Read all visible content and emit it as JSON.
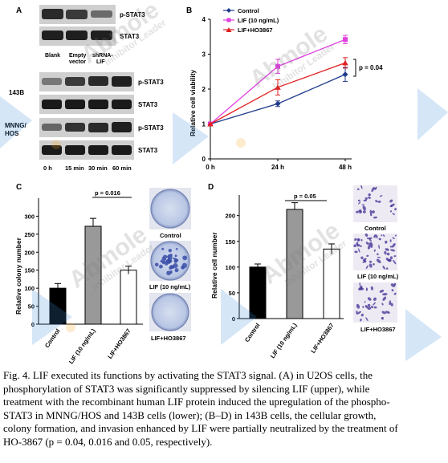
{
  "panel_a": {
    "label": "A",
    "top_blot": {
      "lanes": [
        "Blank",
        "Empty\nvector",
        "shRNA-\nLIF"
      ],
      "bands": [
        "p-STAT3",
        "STAT3"
      ]
    },
    "bottom_blot": {
      "cell_lines": [
        "143B",
        "MNNG/\nHOS"
      ],
      "bands": [
        "p-STAT3",
        "STAT3",
        "p-STAT3",
        "STAT3"
      ],
      "time_points": [
        "0 h",
        "15 min",
        "30 min",
        "60 min"
      ]
    }
  },
  "panel_b": {
    "label": "B",
    "ylabel": "Relative cell viability",
    "legend": [
      "Control",
      "LIF (10 ng/mL)",
      "LIF+HO3867"
    ],
    "pvalue": "p = 0.04"
  },
  "panel_c": {
    "label": "C",
    "ylabel": "Relative colony number",
    "pvalue": "p = 0.016",
    "photo_labels": [
      "Control",
      "LIF (10 ng/mL)",
      "LIF+HO3867"
    ]
  },
  "panel_d": {
    "label": "D",
    "ylabel": "Relative cell number",
    "pvalue": "p = 0.05",
    "photo_labels": [
      "Control",
      "LIF (10 ng/mL)",
      "LIF+HO3867"
    ]
  },
  "watermark": {
    "text": "Abmole",
    "subtext": "Inhibitor Leader"
  },
  "chart_data": [
    {
      "type": "line",
      "x": [
        "0 h",
        "24 h",
        "48 h"
      ],
      "xticks": [
        "0 h",
        "24 h",
        "48 h"
      ],
      "ylim": [
        0,
        4
      ],
      "yticks": [
        0,
        1,
        2,
        3,
        4
      ],
      "ylabel": "Relative cell viability",
      "series": [
        {
          "name": "Control",
          "values": [
            1.0,
            1.58,
            2.42
          ],
          "err": [
            0.03,
            0.08,
            0.2
          ],
          "color": "#1f3a8a",
          "marker": "diamond"
        },
        {
          "name": "LIF (10 ng/mL)",
          "values": [
            1.0,
            2.65,
            3.42
          ],
          "err": [
            0.03,
            0.2,
            0.12
          ],
          "color": "#e040e0",
          "marker": "square"
        },
        {
          "name": "LIF+HO3867",
          "values": [
            1.0,
            2.05,
            2.75
          ],
          "err": [
            0.03,
            0.22,
            0.15
          ],
          "color": "#e02020",
          "marker": "triangle"
        }
      ]
    },
    {
      "type": "bar",
      "categories": [
        "Control",
        "LIF (10 ng/mL)",
        "LIF+HO3867"
      ],
      "values": [
        100,
        272,
        150
      ],
      "err": [
        13,
        22,
        11
      ],
      "colors": [
        "#000000",
        "#999999",
        "#ffffff"
      ],
      "ylim": [
        0,
        350
      ],
      "yticks": [
        0,
        50,
        100,
        150,
        200,
        250,
        300
      ],
      "ylabel": "Relative colony number"
    },
    {
      "type": "bar",
      "categories": [
        "Control",
        "LIF (10 ng/mL)",
        "LIF+HO3867"
      ],
      "values": [
        100,
        212,
        135
      ],
      "err": [
        6,
        13,
        10
      ],
      "colors": [
        "#000000",
        "#999999",
        "#ffffff"
      ],
      "ylim": [
        0,
        240
      ],
      "yticks": [
        0,
        50,
        100,
        150,
        200
      ],
      "ylabel": "Relative cell number"
    }
  ],
  "caption": [
    "Fig. 4. LIF executed its functions by activating the STAT3 signal. (A) in U2OS cells, the",
    "phosphorylation of STAT3 was significantly suppressed by silencing LIF (upper), while",
    "treatment with the recombinant human LIF protein induced the upregulation of the phospho-",
    "STAT3 in MNNG/HOS and 143B cells (lower); (B–D) in 143B cells, the cellular growth,",
    "colony formation, and invasion enhanced by LIF were partially neutralized by the treatment of",
    "HO-3867 (p = 0.04, 0.016 and 0.05, respectively)."
  ]
}
